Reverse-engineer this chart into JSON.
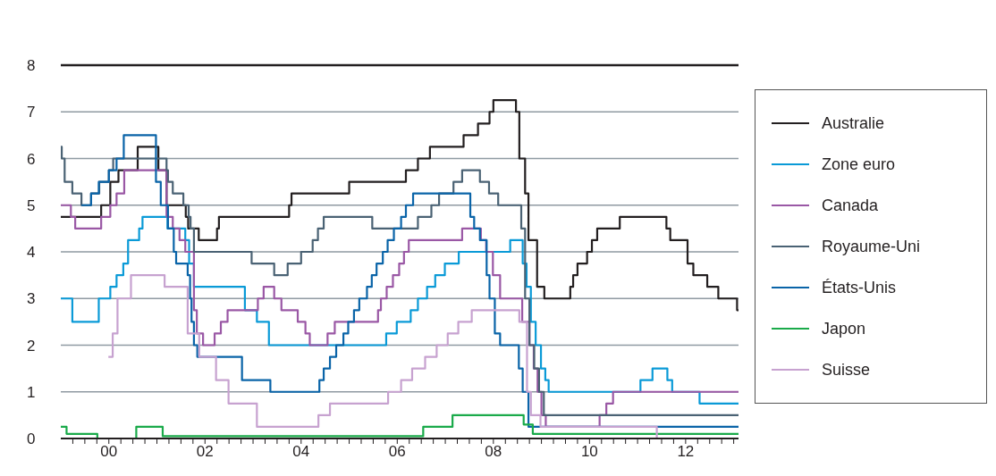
{
  "chart_data": {
    "type": "step",
    "xlim": [
      1999,
      2013.1
    ],
    "ylim": [
      0,
      8
    ],
    "yticks": [
      0,
      1,
      2,
      3,
      4,
      5,
      6,
      7,
      8
    ],
    "xticks": [
      {
        "value": 1999.25,
        "label": null
      },
      {
        "value": 1999.5,
        "label": null
      },
      {
        "value": 1999.75,
        "label": null
      },
      {
        "value": 2000,
        "label": "00"
      },
      {
        "value": 2000.25,
        "label": null
      },
      {
        "value": 2000.5,
        "label": null
      },
      {
        "value": 2000.75,
        "label": null
      },
      {
        "value": 2001,
        "label": null
      },
      {
        "value": 2001.25,
        "label": null
      },
      {
        "value": 2001.5,
        "label": null
      },
      {
        "value": 2001.75,
        "label": null
      },
      {
        "value": 2002,
        "label": "02"
      },
      {
        "value": 2002.25,
        "label": null
      },
      {
        "value": 2002.5,
        "label": null
      },
      {
        "value": 2002.75,
        "label": null
      },
      {
        "value": 2003,
        "label": null
      },
      {
        "value": 2003.25,
        "label": null
      },
      {
        "value": 2003.5,
        "label": null
      },
      {
        "value": 2003.75,
        "label": null
      },
      {
        "value": 2004,
        "label": "04"
      },
      {
        "value": 2004.25,
        "label": null
      },
      {
        "value": 2004.5,
        "label": null
      },
      {
        "value": 2004.75,
        "label": null
      },
      {
        "value": 2005,
        "label": null
      },
      {
        "value": 2005.25,
        "label": null
      },
      {
        "value": 2005.5,
        "label": null
      },
      {
        "value": 2005.75,
        "label": null
      },
      {
        "value": 2006,
        "label": "06"
      },
      {
        "value": 2006.25,
        "label": null
      },
      {
        "value": 2006.5,
        "label": null
      },
      {
        "value": 2006.75,
        "label": null
      },
      {
        "value": 2007,
        "label": null
      },
      {
        "value": 2007.25,
        "label": null
      },
      {
        "value": 2007.5,
        "label": null
      },
      {
        "value": 2007.75,
        "label": null
      },
      {
        "value": 2008,
        "label": "08"
      },
      {
        "value": 2008.25,
        "label": null
      },
      {
        "value": 2008.5,
        "label": null
      },
      {
        "value": 2008.75,
        "label": null
      },
      {
        "value": 2009,
        "label": null
      },
      {
        "value": 2009.25,
        "label": null
      },
      {
        "value": 2009.5,
        "label": null
      },
      {
        "value": 2009.75,
        "label": null
      },
      {
        "value": 2010,
        "label": "10"
      },
      {
        "value": 2010.25,
        "label": null
      },
      {
        "value": 2010.5,
        "label": null
      },
      {
        "value": 2010.75,
        "label": null
      },
      {
        "value": 2011,
        "label": null
      },
      {
        "value": 2011.25,
        "label": null
      },
      {
        "value": 2011.5,
        "label": null
      },
      {
        "value": 2011.75,
        "label": null
      },
      {
        "value": 2012,
        "label": "12"
      },
      {
        "value": 2012.25,
        "label": null
      },
      {
        "value": 2012.5,
        "label": null
      },
      {
        "value": 2012.75,
        "label": null
      },
      {
        "value": 2013,
        "label": null
      }
    ],
    "grid": "y",
    "legend": "right",
    "series": [
      {
        "name": "Australie",
        "color": "#231f20",
        "x": [
          1999.0,
          1999.84,
          2000.03,
          2000.2,
          2000.6,
          2001.03,
          2001.2,
          2001.6,
          2001.65,
          2001.87,
          2002.25,
          2002.29,
          2003.75,
          2003.8,
          2005.0,
          2006.18,
          2006.43,
          2006.68,
          2007.38,
          2007.68,
          2007.92,
          2008.0,
          2008.47,
          2008.54,
          2008.66,
          2008.73,
          2008.91,
          2009.06,
          2009.6,
          2009.66,
          2009.75,
          2009.95,
          2010.05,
          2010.16,
          2010.63,
          2011.6,
          2011.68,
          2012.04,
          2012.16,
          2012.45,
          2012.68,
          2013.07,
          2013.1
        ],
        "values": [
          4.75,
          5.0,
          5.5,
          5.75,
          6.25,
          5.75,
          5.0,
          4.75,
          4.5,
          4.25,
          4.5,
          4.75,
          5.0,
          5.25,
          5.5,
          5.75,
          6.0,
          6.25,
          6.5,
          6.75,
          7.0,
          7.25,
          7.0,
          6.0,
          5.25,
          4.25,
          3.25,
          3.0,
          3.25,
          3.5,
          3.75,
          4.0,
          4.25,
          4.5,
          4.75,
          4.5,
          4.25,
          3.75,
          3.5,
          3.25,
          3.0,
          2.75,
          2.75
        ]
      },
      {
        "name": "Zone euro",
        "color": "#0a9ad7",
        "x": [
          1999.0,
          1999.24,
          1999.79,
          2000.03,
          2000.16,
          2000.3,
          2000.4,
          2000.63,
          2000.7,
          2001.22,
          2001.59,
          2001.67,
          2001.77,
          2002.83,
          2003.08,
          2003.33,
          2005.77,
          2005.99,
          2006.28,
          2006.43,
          2006.62,
          2006.79,
          2006.99,
          2007.28,
          2008.35,
          2008.61,
          2008.69,
          2008.78,
          2008.88,
          2008.99,
          2009.08,
          2009.15,
          2011.06,
          2011.31,
          2011.62,
          2011.72,
          2012.29,
          2013.1
        ],
        "values": [
          3.0,
          2.5,
          3.0,
          3.25,
          3.5,
          3.75,
          4.25,
          4.5,
          4.75,
          4.5,
          4.25,
          3.75,
          3.25,
          2.75,
          2.5,
          2.0,
          2.25,
          2.5,
          2.75,
          3.0,
          3.25,
          3.5,
          3.75,
          4.0,
          4.25,
          3.75,
          3.25,
          2.5,
          2.0,
          1.5,
          1.25,
          1.0,
          1.25,
          1.5,
          1.25,
          1.0,
          0.75,
          0.75
        ]
      },
      {
        "name": "Canada",
        "color": "#9a58a5",
        "x": [
          1999.0,
          1999.21,
          1999.3,
          1999.84,
          2000.03,
          2000.16,
          2000.32,
          2001.2,
          2001.33,
          2001.47,
          2001.59,
          2001.77,
          2001.83,
          2001.96,
          2002.2,
          2002.33,
          2002.47,
          2003.1,
          2003.22,
          2003.44,
          2003.59,
          2003.93,
          2004.09,
          2004.18,
          2004.55,
          2004.7,
          2005.6,
          2005.66,
          2005.78,
          2005.91,
          2006.04,
          2006.14,
          2006.24,
          2007.35,
          2007.74,
          2007.85,
          2007.99,
          2008.14,
          2008.6,
          2008.75,
          2008.84,
          2008.92,
          2009.0,
          2009.09,
          2010.21,
          2010.35,
          2010.49,
          2013.1
        ],
        "values": [
          5.0,
          4.75,
          4.5,
          4.75,
          5.0,
          5.25,
          5.75,
          4.75,
          4.5,
          4.25,
          4.0,
          2.75,
          2.25,
          2.0,
          2.25,
          2.5,
          2.75,
          3.0,
          3.25,
          3.0,
          2.75,
          2.5,
          2.25,
          2.0,
          2.25,
          2.5,
          2.75,
          3.0,
          3.25,
          3.5,
          3.75,
          4.0,
          4.25,
          4.5,
          4.25,
          4.0,
          3.5,
          3.0,
          2.5,
          2.0,
          1.5,
          1.0,
          0.5,
          0.25,
          0.5,
          0.75,
          1.0,
          1.0
        ]
      },
      {
        "name": "Royaume-Uni",
        "color": "#4a6274",
        "x": [
          1999.0,
          1999.02,
          1999.08,
          1999.24,
          1999.43,
          1999.63,
          1999.8,
          2000.0,
          2000.09,
          2001.2,
          2001.23,
          2001.33,
          2001.55,
          2001.66,
          2001.7,
          2001.77,
          2002.97,
          2003.44,
          2003.72,
          2004.0,
          2004.24,
          2004.35,
          2004.47,
          2005.48,
          2006.43,
          2006.71,
          2006.87,
          2007.17,
          2007.35,
          2007.72,
          2007.91,
          2008.1,
          2008.58,
          2008.66,
          2008.75,
          2008.85,
          2008.95,
          2009.05,
          2013.1
        ],
        "values": [
          6.25,
          6.0,
          5.5,
          5.25,
          5.0,
          5.25,
          5.5,
          5.75,
          6.0,
          5.75,
          5.5,
          5.25,
          5.0,
          4.75,
          4.5,
          4.0,
          3.75,
          3.5,
          3.75,
          4.0,
          4.25,
          4.5,
          4.75,
          4.5,
          4.75,
          5.0,
          5.25,
          5.5,
          5.75,
          5.5,
          5.25,
          5.0,
          4.5,
          3.0,
          2.0,
          1.5,
          1.0,
          0.5,
          0.5
        ]
      },
      {
        "name": "États-Unis",
        "color": "#0a64a8",
        "x": [
          1999.43,
          1999.63,
          1999.79,
          2000.0,
          2000.16,
          2000.31,
          2000.98,
          2001.08,
          2001.23,
          2001.35,
          2001.4,
          2001.64,
          2001.69,
          2001.72,
          2001.77,
          2001.84,
          2002.77,
          2003.36,
          2004.38,
          2004.47,
          2004.6,
          2004.73,
          2004.88,
          2004.98,
          2005.1,
          2005.21,
          2005.37,
          2005.47,
          2005.57,
          2005.7,
          2005.8,
          2005.93,
          2006.08,
          2006.18,
          2006.33,
          2007.52,
          2007.6,
          2007.72,
          2007.86,
          2007.92,
          2008.03,
          2008.14,
          2008.53,
          2008.61,
          2008.73,
          2013.1
        ],
        "values": [
          5.0,
          5.25,
          5.5,
          5.75,
          6.0,
          6.5,
          5.5,
          5.0,
          4.5,
          4.0,
          3.75,
          3.5,
          3.0,
          2.5,
          2.0,
          1.75,
          1.25,
          1.0,
          1.25,
          1.5,
          1.75,
          2.0,
          2.25,
          2.5,
          2.75,
          3.0,
          3.25,
          3.5,
          3.75,
          4.0,
          4.25,
          4.5,
          4.75,
          5.0,
          5.25,
          4.75,
          4.5,
          4.25,
          3.5,
          3.0,
          2.25,
          2.0,
          1.5,
          1.0,
          0.25,
          0.25
        ]
      },
      {
        "name": "Japon",
        "color": "#1aaa4a",
        "x": [
          1999.0,
          1999.12,
          1999.76,
          2000.57,
          2001.12,
          2006.54,
          2007.15,
          2008.63,
          2008.82,
          2013.1
        ],
        "values": [
          0.25,
          0.1,
          0,
          0.25,
          0.05,
          0.25,
          0.5,
          0.3,
          0.1,
          0.1
        ]
      },
      {
        "name": "Suisse",
        "color": "#c7a2d0",
        "x": [
          1999.99,
          2000.08,
          2000.18,
          2000.46,
          2001.16,
          2001.64,
          2001.88,
          2002.23,
          2002.49,
          2003.08,
          2004.36,
          2004.6,
          2005.81,
          2006.08,
          2006.31,
          2006.58,
          2006.82,
          2007.05,
          2007.27,
          2007.55,
          2008.54,
          2008.7,
          2008.78,
          2008.98,
          2011.4,
          2013.1
        ],
        "values": [
          1.75,
          2.25,
          3.0,
          3.5,
          3.25,
          2.25,
          1.75,
          1.25,
          0.75,
          0.25,
          0.5,
          0.75,
          1.0,
          1.25,
          1.5,
          1.75,
          2.0,
          2.25,
          2.5,
          2.75,
          2.5,
          1.0,
          0.5,
          0.25,
          0,
          0
        ]
      }
    ]
  }
}
